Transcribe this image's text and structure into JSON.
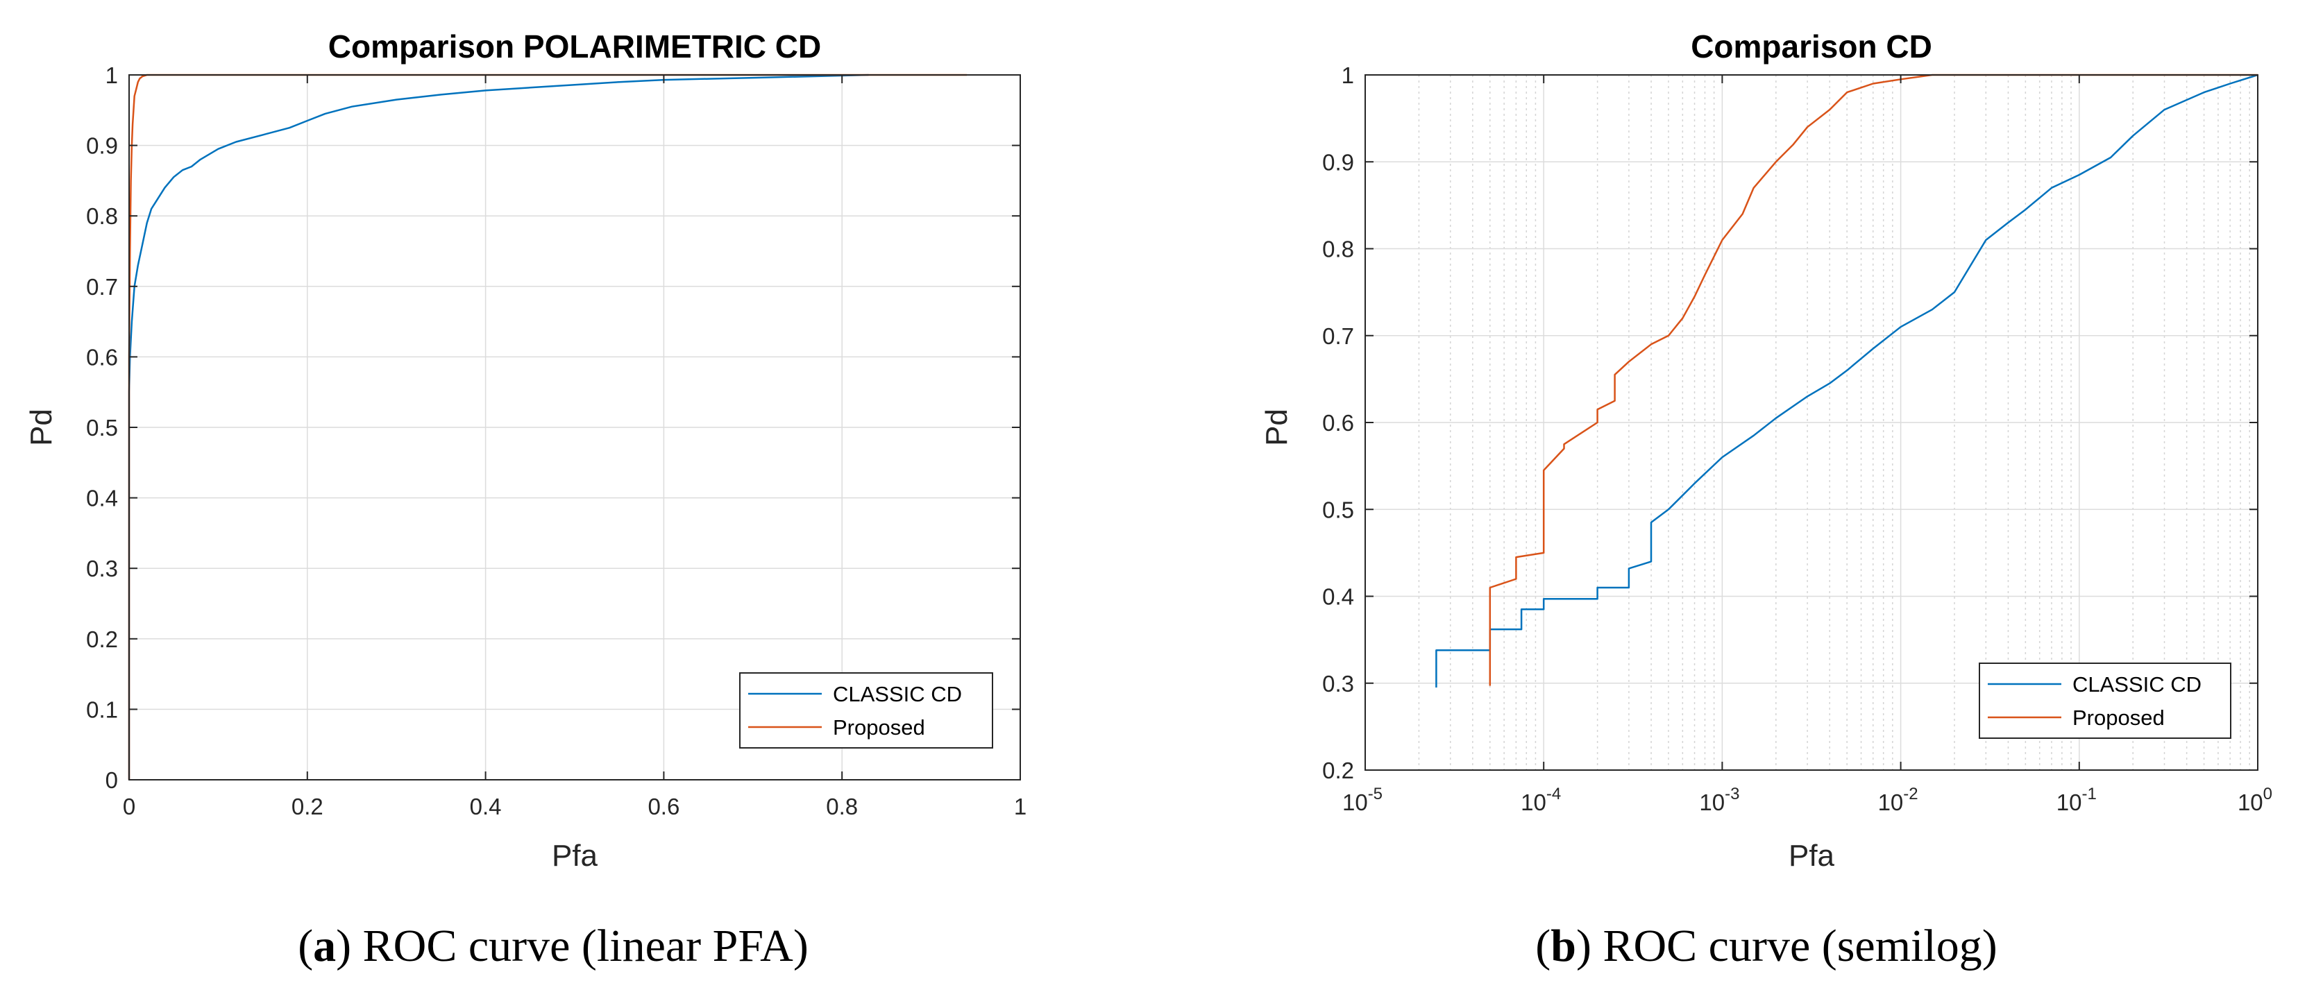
{
  "colors": {
    "classic": "#0072BD",
    "proposed": "#D95319"
  },
  "legend": {
    "classic": "CLASSIC CD",
    "proposed": "Proposed"
  },
  "captions": [
    {
      "prefix": "(",
      "bold": "a",
      "suffix": ") ROC curve (linear PFA)"
    },
    {
      "prefix": "(",
      "bold": "b",
      "suffix": ") ROC curve (semilog)"
    }
  ],
  "chart_data": [
    {
      "type": "line",
      "title": "Comparison POLARIMETRIC CD",
      "xlabel": "Pfa",
      "ylabel": "Pd",
      "xscale": "linear",
      "xlim": [
        0,
        1
      ],
      "ylim": [
        0,
        1
      ],
      "xticks": [
        0,
        0.2,
        0.4,
        0.6,
        0.8,
        1
      ],
      "xtick_labels": [
        "0",
        "0.2",
        "0.4",
        "0.6",
        "0.8",
        "1"
      ],
      "yticks": [
        0,
        0.1,
        0.2,
        0.3,
        0.4,
        0.5,
        0.6,
        0.7,
        0.8,
        0.9,
        1
      ],
      "ytick_labels": [
        "0",
        "0.1",
        "0.2",
        "0.3",
        "0.4",
        "0.5",
        "0.6",
        "0.7",
        "0.8",
        "0.9",
        "1"
      ],
      "grid": true,
      "legend_position": "bottom-right",
      "series": [
        {
          "name": "CLASSIC CD",
          "x": [
            0,
            0,
            0.001,
            0.003,
            0.006,
            0.01,
            0.015,
            0.02,
            0.025,
            0.03,
            0.04,
            0.05,
            0.06,
            0.07,
            0.08,
            0.1,
            0.12,
            0.15,
            0.18,
            0.2,
            0.22,
            0.25,
            0.3,
            0.35,
            0.4,
            0.45,
            0.5,
            0.55,
            0.6,
            0.7,
            0.8,
            0.83
          ],
          "y": [
            0,
            0.55,
            0.6,
            0.65,
            0.7,
            0.73,
            0.76,
            0.79,
            0.81,
            0.82,
            0.84,
            0.855,
            0.865,
            0.87,
            0.88,
            0.895,
            0.905,
            0.915,
            0.925,
            0.935,
            0.945,
            0.955,
            0.965,
            0.972,
            0.978,
            0.982,
            0.986,
            0.99,
            0.993,
            0.996,
            0.999,
            1
          ]
        },
        {
          "name": "Proposed",
          "x": [
            0,
            0,
            0.001,
            0.002,
            0.003,
            0.004,
            0.005,
            0.006,
            0.008,
            0.01,
            0.012,
            0.015,
            0.02,
            0.94
          ],
          "y": [
            0,
            0.6,
            0.75,
            0.85,
            0.9,
            0.93,
            0.95,
            0.97,
            0.98,
            0.99,
            0.995,
            0.998,
            1,
            1
          ]
        }
      ]
    },
    {
      "type": "line",
      "title": "Comparison CD",
      "xlabel": "Pfa",
      "ylabel": "Pd",
      "xscale": "log",
      "xlim": [
        1e-05,
        1
      ],
      "ylim": [
        0.2,
        1
      ],
      "xticks": [
        1e-05,
        0.0001,
        0.001,
        0.01,
        0.1,
        1
      ],
      "xtick_labels": [
        {
          "base": "10",
          "exp": "-5"
        },
        {
          "base": "10",
          "exp": "-4"
        },
        {
          "base": "10",
          "exp": "-3"
        },
        {
          "base": "10",
          "exp": "-2"
        },
        {
          "base": "10",
          "exp": "-1"
        },
        {
          "base": "10",
          "exp": "0"
        }
      ],
      "yticks": [
        0.2,
        0.3,
        0.4,
        0.5,
        0.6,
        0.7,
        0.8,
        0.9,
        1
      ],
      "ytick_labels": [
        "0.2",
        "0.3",
        "0.4",
        "0.5",
        "0.6",
        "0.7",
        "0.8",
        "0.9",
        "1"
      ],
      "grid": true,
      "minor_grid": true,
      "legend_position": "bottom-right",
      "series": [
        {
          "name": "CLASSIC CD",
          "x": [
            2.5e-05,
            2.5e-05,
            5e-05,
            5e-05,
            7.5e-05,
            7.5e-05,
            0.0001,
            0.0001,
            0.0002,
            0.0002,
            0.0003,
            0.0003,
            0.0004,
            0.0004,
            0.0005,
            0.0007,
            0.001,
            0.0015,
            0.002,
            0.003,
            0.004,
            0.005,
            0.007,
            0.01,
            0.015,
            0.02,
            0.03,
            0.04,
            0.05,
            0.07,
            0.1,
            0.15,
            0.2,
            0.3,
            0.5,
            0.7,
            1
          ],
          "y": [
            0.295,
            0.338,
            0.338,
            0.362,
            0.362,
            0.385,
            0.385,
            0.397,
            0.397,
            0.41,
            0.41,
            0.432,
            0.44,
            0.485,
            0.5,
            0.53,
            0.56,
            0.585,
            0.605,
            0.63,
            0.645,
            0.66,
            0.685,
            0.71,
            0.73,
            0.75,
            0.81,
            0.83,
            0.845,
            0.87,
            0.885,
            0.905,
            0.93,
            0.96,
            0.98,
            0.99,
            1
          ]
        },
        {
          "name": "Proposed",
          "x": [
            5e-05,
            5e-05,
            7e-05,
            7e-05,
            0.0001,
            0.0001,
            0.00013,
            0.00013,
            0.0002,
            0.0002,
            0.00025,
            0.00025,
            0.0003,
            0.0004,
            0.0005,
            0.0006,
            0.0007,
            0.0008,
            0.001,
            0.0013,
            0.0015,
            0.002,
            0.0025,
            0.003,
            0.004,
            0.005,
            0.007,
            0.01,
            0.015,
            0.02,
            0.03,
            1
          ],
          "y": [
            0.297,
            0.41,
            0.42,
            0.445,
            0.45,
            0.545,
            0.57,
            0.575,
            0.6,
            0.615,
            0.625,
            0.655,
            0.67,
            0.69,
            0.7,
            0.72,
            0.745,
            0.77,
            0.81,
            0.84,
            0.87,
            0.9,
            0.92,
            0.94,
            0.96,
            0.98,
            0.99,
            0.995,
            1,
            1,
            1,
            1
          ]
        }
      ]
    }
  ]
}
